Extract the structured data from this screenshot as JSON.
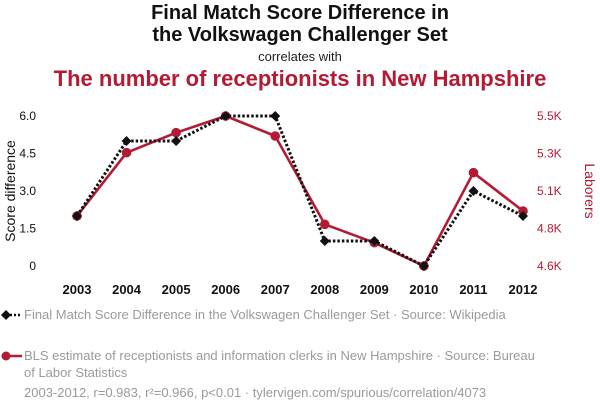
{
  "header": {
    "title_line1": "Final Match Score Difference in",
    "title_line2": "the Volkswagen Challenger Set",
    "subtitle": "correlates with",
    "headline": "The number of receptionists in New Hampshire"
  },
  "chart_data": {
    "type": "line",
    "x": [
      "2003",
      "2004",
      "2005",
      "2006",
      "2007",
      "2008",
      "2009",
      "2010",
      "2011",
      "2012"
    ],
    "y_left": {
      "label": "Score difference",
      "ticks": [
        "0",
        "1.5",
        "3.0",
        "4.5",
        "6.0"
      ],
      "range": [
        0,
        6
      ]
    },
    "y_right": {
      "label": "Laborers",
      "ticks": [
        "4.6K",
        "4.8K",
        "5.1K",
        "5.3K",
        "5.5K"
      ],
      "range": [
        4600,
        5500
      ]
    },
    "series": [
      {
        "name": "Final Match Score Difference in the Volkswagen Challenger Set · Source: Wikipedia",
        "axis": "left",
        "color": "#111111",
        "style": "dotted",
        "marker": "diamond",
        "values": [
          2,
          5,
          5,
          6,
          6,
          1,
          1,
          0,
          3,
          2
        ]
      },
      {
        "name": "BLS estimate of receptionists and information clerks in New Hampshire · Source: Bureau of Labor Statistics",
        "axis": "right",
        "color": "#b31b34",
        "style": "solid",
        "marker": "circle",
        "values": [
          4900,
          5280,
          5400,
          5500,
          5380,
          4850,
          4740,
          4600,
          5160,
          4930
        ]
      }
    ],
    "grid": false,
    "legend_position": "bottom"
  },
  "footer": {
    "stats": "2003-2012, r=0.983, r²=0.966, p<0.01 · tylervigen.com/spurious/correlation/4073"
  }
}
